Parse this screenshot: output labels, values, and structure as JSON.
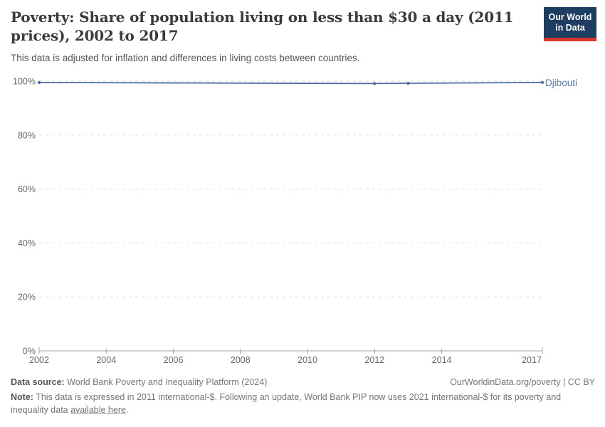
{
  "header": {
    "title": "Poverty: Share of population living on less than $30 a day (2011 prices), 2002 to 2017",
    "subtitle": "This data is adjusted for inflation and differences in living costs between countries.",
    "logo": {
      "line1": "Our World",
      "line2": "in Data"
    }
  },
  "chart_data": {
    "type": "line",
    "title": "Poverty: Share of population living on less than $30 a day (2011 prices), 2002 to 2017",
    "xlabel": "",
    "ylabel": "",
    "unit": "%",
    "grid": "dashed-horizontal",
    "legend": "end-of-line-label",
    "x_range": [
      2002,
      2017
    ],
    "y_range": [
      0,
      100
    ],
    "x_ticks": [
      2002,
      2004,
      2006,
      2008,
      2010,
      2012,
      2014,
      2017
    ],
    "y_ticks_percent": [
      0,
      20,
      40,
      60,
      80,
      100
    ],
    "series": [
      {
        "name": "Djibouti",
        "color": "#4c6ba6",
        "points": [
          {
            "x": 2002,
            "y": 99.5
          },
          {
            "x": 2012,
            "y": 99.1
          },
          {
            "x": 2013,
            "y": 99.2
          },
          {
            "x": 2017,
            "y": 99.5
          }
        ]
      }
    ]
  },
  "footer": {
    "data_source_label": "Data source:",
    "data_source_value": "World Bank Poverty and Inequality Platform (2024)",
    "attribution": "OurWorldinData.org/poverty | CC BY",
    "note_label": "Note:",
    "note_text": "This data is expressed in 2011 international-$. Following an update, World Bank PIP now uses 2021 international-$ for its poverty and inequality data",
    "note_link_text": "available here",
    "note_suffix": "."
  },
  "colors": {
    "title": "#3b3b3b",
    "subtitle": "#555555",
    "series": "#4c6ba6",
    "series_label": "#5878c0",
    "grid": "#dddddd",
    "axis": "#a3a3a3",
    "tick_label": "#666666",
    "footer": "#757575",
    "footer_bold": "#555555",
    "logo_bg": "#1d3d63",
    "logo_stripe": "#d8352e"
  }
}
